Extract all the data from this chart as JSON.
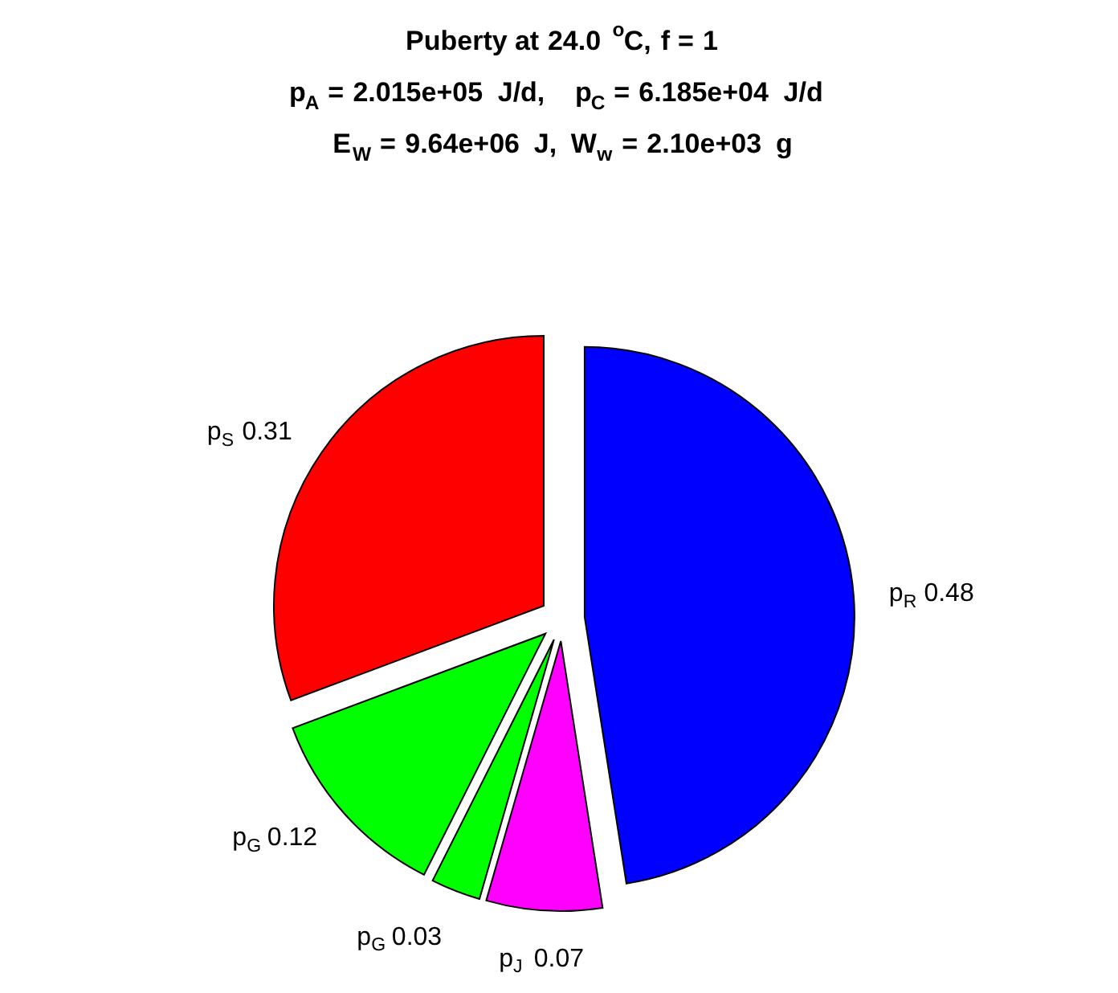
{
  "chart_data": {
    "type": "pie",
    "title": [
      "Puberty at 24.0 $^{o}$C, f = 1",
      "p$_{A}$ = 2.015e+05 J/d,  p$_{C}$ = 6.185e+04 J/d",
      "E$_{W}$ = 9.64e+06 J, W$_{w}$ = 2.10e+03 g"
    ],
    "categories": [
      "p$_{R}$",
      "p$_{J}$",
      "p$_{G}$",
      "p$_{G}$",
      "p$_{S}$"
    ],
    "values": [
      0.48,
      0.07,
      0.03,
      0.12,
      0.31
    ],
    "colors": [
      "#0000ff",
      "#ff00ff",
      "#00ff00",
      "#00ff00",
      "#ff0000"
    ],
    "data_labels": true,
    "legend": false
  }
}
